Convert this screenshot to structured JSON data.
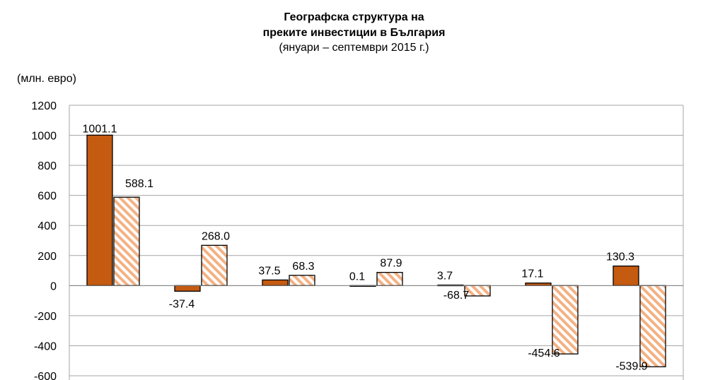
{
  "header": {
    "title_line1": "Географска структура на",
    "title_line2": "преките инвестиции в България",
    "subtitle": "(януари – септември 2015 г.)"
  },
  "colors": {
    "series1": "#c55a11",
    "series2_stripe": "#f4b183",
    "series2_fill": "#ffffff"
  },
  "chart_data": {
    "type": "bar",
    "title": "Географска структура на преките инвестиции в България",
    "subtitle": "(януари – септември 2015 г.)",
    "ylabel": "(млн. евро)",
    "xlabel": "",
    "ylim": [
      -600,
      1200
    ],
    "yticks": [
      1200,
      1000,
      800,
      600,
      400,
      200,
      0,
      -200,
      -400,
      -600
    ],
    "grid": true,
    "categories": [
      "",
      "",
      "",
      "",
      "",
      "",
      ""
    ],
    "series": [
      {
        "values": [
          1001.1,
          -37.4,
          37.5,
          0.1,
          3.7,
          17.1,
          130.3
        ],
        "labels": [
          "1001.1",
          "-37.4",
          "37.5",
          "0.1",
          "3.7",
          "17.1",
          "130.3"
        ]
      },
      {
        "values": [
          588.1,
          268.0,
          68.3,
          87.9,
          -68.7,
          -454.6,
          -539.9
        ],
        "labels": [
          "588.1",
          "268.0",
          "68.3",
          "87.9",
          "-68.7",
          "-454.6",
          "-539.9"
        ]
      }
    ]
  }
}
